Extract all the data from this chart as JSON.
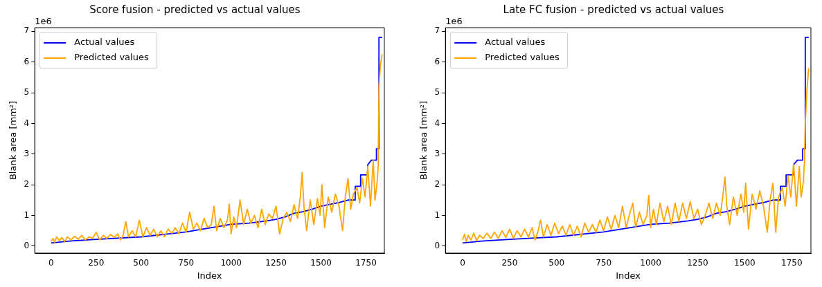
{
  "chart_data": [
    {
      "type": "line",
      "title": "Score fusion - predicted vs actual values",
      "xlabel": "Index",
      "ylabel": "Blank area [mm²]",
      "annotations": [
        "1e6"
      ],
      "x": [
        0,
        10,
        20,
        30,
        45,
        60,
        75,
        90,
        110,
        130,
        150,
        170,
        190,
        210,
        230,
        250,
        270,
        290,
        310,
        330,
        350,
        370,
        385,
        400,
        415,
        430,
        450,
        470,
        490,
        510,
        530,
        550,
        570,
        590,
        610,
        630,
        650,
        670,
        690,
        710,
        730,
        750,
        770,
        790,
        810,
        830,
        850,
        870,
        890,
        905,
        920,
        940,
        960,
        980,
        990,
        1000,
        1015,
        1030,
        1050,
        1070,
        1090,
        1110,
        1130,
        1150,
        1170,
        1190,
        1210,
        1230,
        1250,
        1270,
        1290,
        1310,
        1330,
        1350,
        1370,
        1385,
        1395,
        1405,
        1420,
        1440,
        1460,
        1480,
        1495,
        1505,
        1520,
        1540,
        1560,
        1580,
        1600,
        1620,
        1635,
        1650,
        1665,
        1680,
        1700,
        1715,
        1730,
        1745,
        1760,
        1775,
        1790,
        1800,
        1812,
        1818,
        1822,
        1830,
        1840
      ],
      "series": [
        {
          "name": "Actual values",
          "color": "#0000ff",
          "x": [
            0,
            100,
            250,
            500,
            750,
            1000,
            1100,
            1200,
            1250,
            1300,
            1350,
            1400,
            1450,
            1500,
            1550,
            1600,
            1650,
            1690,
            1690,
            1720,
            1720,
            1760,
            1760,
            1780,
            1808,
            1808,
            1822,
            1822,
            1840
          ],
          "values": [
            0.1,
            0.16,
            0.22,
            0.3,
            0.46,
            0.71,
            0.75,
            0.82,
            0.87,
            0.95,
            1.07,
            1.12,
            1.2,
            1.3,
            1.36,
            1.42,
            1.5,
            1.5,
            1.95,
            1.95,
            2.32,
            2.32,
            2.65,
            2.8,
            2.8,
            3.17,
            3.17,
            6.8,
            6.8
          ]
        },
        {
          "name": "Predicted values",
          "color": "#ffa500",
          "values": [
            0.15,
            0.25,
            0.12,
            0.3,
            0.18,
            0.28,
            0.15,
            0.3,
            0.2,
            0.32,
            0.22,
            0.35,
            0.2,
            0.3,
            0.25,
            0.45,
            0.2,
            0.35,
            0.25,
            0.38,
            0.28,
            0.4,
            0.2,
            0.35,
            0.8,
            0.3,
            0.5,
            0.3,
            0.85,
            0.3,
            0.6,
            0.35,
            0.55,
            0.3,
            0.5,
            0.3,
            0.55,
            0.42,
            0.6,
            0.4,
            0.75,
            0.45,
            1.1,
            0.55,
            0.75,
            0.5,
            0.9,
            0.6,
            0.7,
            1.3,
            0.5,
            0.9,
            0.6,
            0.85,
            1.37,
            0.4,
            0.95,
            0.6,
            1.5,
            0.7,
            1.2,
            0.75,
            1.0,
            0.6,
            1.2,
            0.7,
            1.05,
            0.9,
            1.3,
            0.4,
            0.9,
            1.1,
            0.8,
            1.35,
            0.9,
            1.6,
            2.4,
            1.3,
            0.5,
            1.5,
            0.7,
            1.55,
            1.0,
            2.0,
            0.6,
            1.6,
            1.1,
            1.7,
            1.3,
            0.5,
            1.6,
            2.2,
            1.2,
            1.7,
            1.9,
            1.4,
            2.2,
            1.6,
            2.6,
            1.3,
            2.8,
            1.5,
            2.1,
            2.6,
            5.2,
            5.9,
            6.25
          ]
        }
      ],
      "xlim": [
        -91,
        1852
      ],
      "xticks": [
        0,
        250,
        500,
        750,
        1000,
        1250,
        1500,
        1750
      ],
      "ylim": [
        -0.23,
        7.12
      ],
      "yticks": [
        0,
        1,
        2,
        3,
        4,
        5,
        6,
        7
      ],
      "legend": "top left",
      "marker": "none",
      "line_style": "solid"
    },
    {
      "type": "line",
      "title": "Late FC fusion - predicted vs actual values",
      "xlabel": "Index",
      "ylabel": "Blank area [mm²]",
      "annotations": [
        "1e6"
      ],
      "x": [
        0,
        10,
        20,
        30,
        45,
        60,
        75,
        90,
        110,
        130,
        150,
        170,
        190,
        210,
        230,
        250,
        270,
        290,
        310,
        330,
        350,
        370,
        385,
        400,
        415,
        430,
        450,
        470,
        490,
        510,
        530,
        550,
        570,
        590,
        610,
        630,
        650,
        670,
        690,
        710,
        730,
        750,
        770,
        790,
        810,
        830,
        850,
        870,
        890,
        905,
        920,
        940,
        960,
        980,
        990,
        1000,
        1015,
        1030,
        1050,
        1070,
        1090,
        1110,
        1130,
        1150,
        1170,
        1190,
        1210,
        1230,
        1250,
        1270,
        1290,
        1310,
        1330,
        1350,
        1370,
        1385,
        1395,
        1405,
        1420,
        1440,
        1460,
        1480,
        1495,
        1505,
        1520,
        1540,
        1560,
        1580,
        1600,
        1620,
        1635,
        1650,
        1665,
        1680,
        1700,
        1715,
        1730,
        1745,
        1760,
        1775,
        1790,
        1800,
        1812,
        1818,
        1822,
        1830,
        1840
      ],
      "series": [
        {
          "name": "Actual values",
          "color": "#0000ff",
          "x": [
            0,
            100,
            250,
            500,
            750,
            1000,
            1100,
            1200,
            1250,
            1300,
            1350,
            1400,
            1450,
            1500,
            1550,
            1600,
            1650,
            1690,
            1690,
            1720,
            1720,
            1760,
            1760,
            1780,
            1808,
            1808,
            1822,
            1822,
            1840
          ],
          "values": [
            0.1,
            0.16,
            0.22,
            0.3,
            0.46,
            0.71,
            0.75,
            0.82,
            0.87,
            0.95,
            1.07,
            1.12,
            1.2,
            1.3,
            1.36,
            1.42,
            1.5,
            1.5,
            1.95,
            1.95,
            2.32,
            2.32,
            2.65,
            2.8,
            2.8,
            3.17,
            3.17,
            6.8,
            6.8
          ]
        },
        {
          "name": "Predicted values",
          "color": "#ffa500",
          "values": [
            0.2,
            0.38,
            0.15,
            0.35,
            0.2,
            0.42,
            0.18,
            0.35,
            0.25,
            0.42,
            0.25,
            0.45,
            0.25,
            0.5,
            0.28,
            0.55,
            0.25,
            0.5,
            0.3,
            0.55,
            0.3,
            0.6,
            0.2,
            0.45,
            0.85,
            0.3,
            0.7,
            0.35,
            0.75,
            0.4,
            0.65,
            0.35,
            0.7,
            0.35,
            0.65,
            0.3,
            0.75,
            0.45,
            0.7,
            0.45,
            0.85,
            0.5,
            0.95,
            0.55,
            1.0,
            0.6,
            1.3,
            0.6,
            1.1,
            1.4,
            0.6,
            1.1,
            0.7,
            1.0,
            1.65,
            0.6,
            1.2,
            0.7,
            1.4,
            0.8,
            1.3,
            0.7,
            1.4,
            0.8,
            1.4,
            0.9,
            1.45,
            0.9,
            1.2,
            0.7,
            1.0,
            1.4,
            0.9,
            1.4,
            1.0,
            1.7,
            2.25,
            1.3,
            0.7,
            1.6,
            1.0,
            1.7,
            1.1,
            2.05,
            0.55,
            1.7,
            1.2,
            1.8,
            1.3,
            0.45,
            1.5,
            2.05,
            0.45,
            1.6,
            1.9,
            1.3,
            2.3,
            1.6,
            2.7,
            1.3,
            2.6,
            1.6,
            2.1,
            2.8,
            4.0,
            5.0,
            5.8
          ]
        }
      ],
      "xlim": [
        -91,
        1852
      ],
      "xticks": [
        0,
        250,
        500,
        750,
        1000,
        1250,
        1500,
        1750
      ],
      "ylim": [
        -0.23,
        7.12
      ],
      "yticks": [
        0,
        1,
        2,
        3,
        4,
        5,
        6,
        7
      ],
      "legend": "top left",
      "marker": "none",
      "line_style": "solid"
    }
  ]
}
